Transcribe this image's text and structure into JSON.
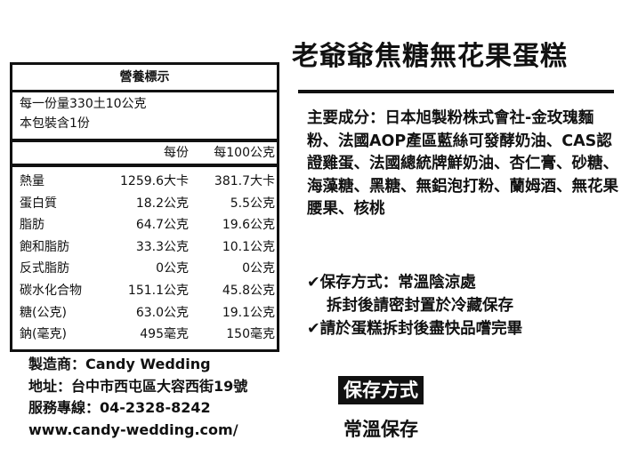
{
  "title": "老爺爺焦糖無花果蛋糕",
  "nutrition": {
    "heading": "營養標示",
    "serving_size": "每一份量330土10公克",
    "servings": "本包裝含1份",
    "col_per_serving": "每份",
    "col_per_100g": "每100公克",
    "rows": [
      {
        "name": "熱量",
        "per_serving": "1259.6大卡",
        "per_100g": "381.7大卡"
      },
      {
        "name": "蛋白質",
        "per_serving": "18.2公克",
        "per_100g": "5.5公克"
      },
      {
        "name": "脂肪",
        "per_serving": "64.7公克",
        "per_100g": "19.6公克"
      },
      {
        "name": "飽和脂肪",
        "per_serving": "33.3公克",
        "per_100g": "10.1公克"
      },
      {
        "name": "反式脂肪",
        "per_serving": "0公克",
        "per_100g": "0公克"
      },
      {
        "name": "碳水化合物",
        "per_serving": "151.1公克",
        "per_100g": "45.8公克"
      },
      {
        "name": "糖(公克)",
        "per_serving": "63.0公克",
        "per_100g": "19.1公克"
      },
      {
        "name": "鈉(毫克)",
        "per_serving": "495毫克",
        "per_100g": "150毫克"
      }
    ]
  },
  "ingredients": "主要成分：日本旭製粉株式會社-金玫瑰麵粉、法國AOP產區藍絲可發酵奶油、CAS認證雞蛋、法國總統牌鮮奶油、杏仁膏、砂糖、海藻糖、黑糖、無鋁泡打粉、蘭姆酒、無花果腰果、核桃",
  "notes": {
    "check_icon": "✔",
    "storage": "保存方式：常溫陰涼處",
    "storage2": "拆封後請密封置於冷藏保存",
    "consume": "請於蛋糕拆封後盡快品嚐完畢"
  },
  "company": {
    "maker": "製造商：Candy Wedding",
    "address": "地址：台中市西屯區大容西街19號",
    "phone": "服務專線：04-2328-8242",
    "website": "www.candy-wedding.com/"
  },
  "storage_badge": {
    "label": "保存方式",
    "value": "常溫保存"
  }
}
